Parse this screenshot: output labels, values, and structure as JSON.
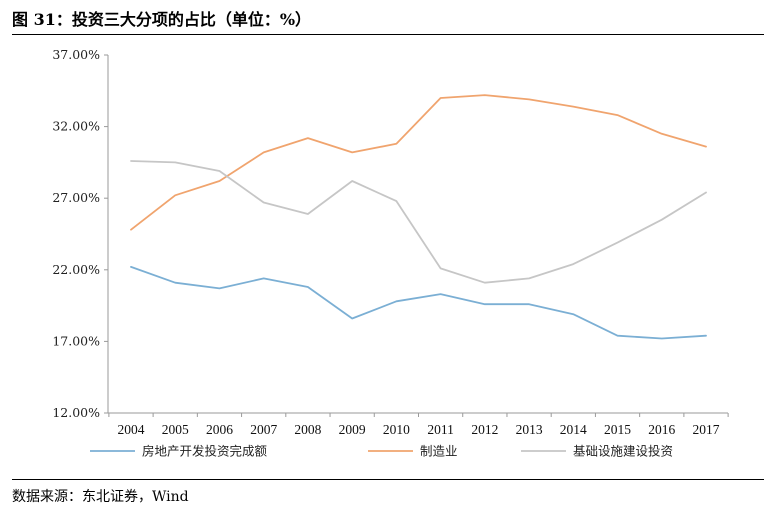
{
  "header": {
    "title": "图 31：投资三大分项的占比（单位：%）"
  },
  "footer": {
    "source": "数据来源：东北证券，Wind"
  },
  "chart_data": {
    "type": "line",
    "title": "图 31：投资三大分项的占比（单位：%）",
    "xlabel": "",
    "ylabel": "",
    "x": [
      "2004",
      "2005",
      "2006",
      "2007",
      "2008",
      "2009",
      "2010",
      "2011",
      "2012",
      "2013",
      "2014",
      "2015",
      "2016",
      "2017"
    ],
    "ylim": [
      12,
      37
    ],
    "yticks": [
      12,
      17,
      22,
      27,
      32,
      37
    ],
    "ytick_labels": [
      "12.00%",
      "17.00%",
      "22.00%",
      "27.00%",
      "32.00%",
      "37.00%"
    ],
    "legend_position": "bottom",
    "grid": false,
    "series": [
      {
        "name": "房地产开发投资完成额",
        "color": "#7BAFD4",
        "values": [
          22.2,
          21.1,
          20.7,
          21.4,
          20.8,
          18.6,
          19.8,
          20.3,
          19.6,
          19.6,
          18.9,
          17.4,
          17.2,
          17.4
        ]
      },
      {
        "name": "制造业",
        "color": "#F0A46E",
        "values": [
          24.8,
          27.2,
          28.2,
          30.2,
          31.2,
          30.2,
          30.8,
          34.0,
          34.2,
          33.9,
          33.4,
          32.8,
          31.5,
          30.6
        ]
      },
      {
        "name": "基础设施建设投资",
        "color": "#C6C6C6",
        "values": [
          29.6,
          29.5,
          28.9,
          26.7,
          25.9,
          28.2,
          26.8,
          22.1,
          21.1,
          21.4,
          22.4,
          23.9,
          25.5,
          27.4
        ]
      }
    ]
  }
}
